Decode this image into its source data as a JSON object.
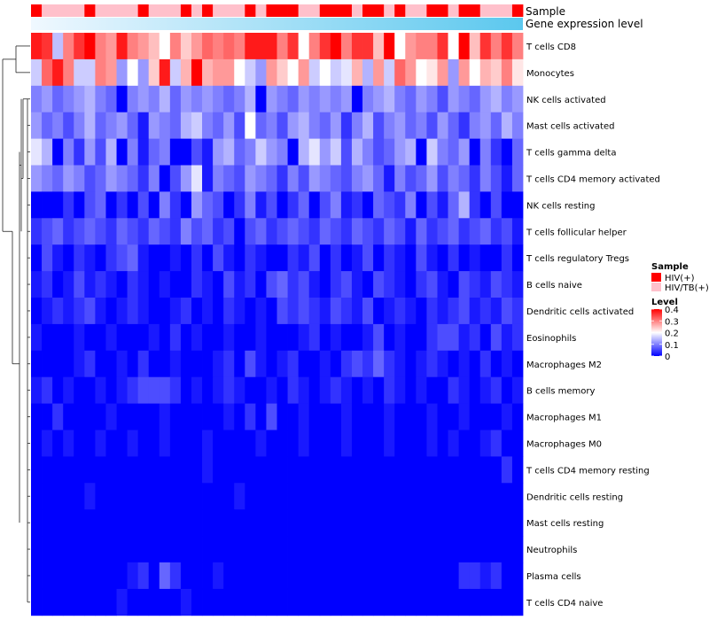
{
  "chart_data": {
    "type": "heatmap",
    "title": "",
    "n_samples": 46,
    "annotations": {
      "sample_label": "Sample",
      "gene_expression_label": "Gene expression level",
      "sample_groups": [
        "H",
        "T",
        "T",
        "T",
        "T",
        "H",
        "T",
        "T",
        "T",
        "T",
        "H",
        "T",
        "T",
        "T",
        "H",
        "T",
        "H",
        "T",
        "T",
        "T",
        "H",
        "T",
        "H",
        "H",
        "H",
        "T",
        "T",
        "H",
        "H",
        "H",
        "T",
        "H",
        "H",
        "T",
        "H",
        "T",
        "T",
        "H",
        "H",
        "T",
        "H",
        "H",
        "T",
        "T",
        "T",
        "H"
      ],
      "gene_expression_colors": [
        "#f0f8ff",
        "#5bc8ee"
      ]
    },
    "rows": [
      {
        "name": "T cells CD8",
        "values": [
          0.38,
          0.36,
          0.15,
          0.3,
          0.36,
          0.4,
          0.3,
          0.28,
          0.38,
          0.3,
          0.28,
          0.25,
          0.2,
          0.3,
          0.24,
          0.28,
          0.32,
          0.3,
          0.32,
          0.3,
          0.38,
          0.38,
          0.38,
          0.3,
          0.36,
          0.2,
          0.3,
          0.36,
          0.4,
          0.3,
          0.36,
          0.36,
          0.25,
          0.4,
          0.2,
          0.28,
          0.3,
          0.3,
          0.36,
          0.2,
          0.4,
          0.25,
          0.36,
          0.3,
          0.36,
          0.3
        ]
      },
      {
        "name": "Monocytes",
        "values": [
          0.16,
          0.32,
          0.38,
          0.3,
          0.16,
          0.16,
          0.3,
          0.28,
          0.12,
          0.2,
          0.12,
          0.24,
          0.38,
          0.16,
          0.26,
          0.4,
          0.26,
          0.28,
          0.28,
          0.2,
          0.16,
          0.12,
          0.28,
          0.24,
          0.2,
          0.28,
          0.16,
          0.2,
          0.16,
          0.18,
          0.26,
          0.14,
          0.28,
          0.16,
          0.32,
          0.28,
          0.2,
          0.22,
          0.28,
          0.12,
          0.28,
          0.2,
          0.26,
          0.24,
          0.3,
          0.22
        ]
      },
      {
        "name": "NK cells activated",
        "values": [
          0.1,
          0.12,
          0.08,
          0.1,
          0.12,
          0.14,
          0.1,
          0.08,
          0.0,
          0.1,
          0.12,
          0.1,
          0.14,
          0.08,
          0.12,
          0.1,
          0.12,
          0.1,
          0.08,
          0.1,
          0.14,
          0.0,
          0.12,
          0.1,
          0.08,
          0.12,
          0.1,
          0.12,
          0.1,
          0.12,
          0.0,
          0.1,
          0.12,
          0.14,
          0.1,
          0.08,
          0.12,
          0.1,
          0.06,
          0.12,
          0.1,
          0.08,
          0.12,
          0.14,
          0.1,
          0.12
        ]
      },
      {
        "name": "Mast cells activated",
        "values": [
          0.12,
          0.08,
          0.1,
          0.06,
          0.1,
          0.14,
          0.08,
          0.1,
          0.12,
          0.08,
          0.02,
          0.12,
          0.1,
          0.08,
          0.14,
          0.16,
          0.1,
          0.08,
          0.12,
          0.06,
          0.2,
          0.08,
          0.1,
          0.06,
          0.12,
          0.14,
          0.1,
          0.08,
          0.12,
          0.04,
          0.1,
          0.14,
          0.06,
          0.1,
          0.12,
          0.08,
          0.1,
          0.06,
          0.12,
          0.08,
          0.04,
          0.1,
          0.12,
          0.08,
          0.14,
          0.1
        ]
      },
      {
        "name": "T cells gamma delta",
        "values": [
          0.18,
          0.14,
          0.0,
          0.1,
          0.04,
          0.12,
          0.06,
          0.14,
          0.0,
          0.1,
          0.02,
          0.08,
          0.1,
          0.0,
          0.0,
          0.06,
          0.02,
          0.12,
          0.14,
          0.08,
          0.1,
          0.16,
          0.12,
          0.1,
          0.0,
          0.14,
          0.18,
          0.12,
          0.16,
          0.06,
          0.14,
          0.1,
          0.06,
          0.08,
          0.12,
          0.14,
          0.0,
          0.16,
          0.1,
          0.08,
          0.12,
          0.0,
          0.1,
          0.04,
          0.0,
          0.08
        ]
      },
      {
        "name": "T cells CD4 memory activated",
        "values": [
          0.12,
          0.1,
          0.08,
          0.12,
          0.1,
          0.06,
          0.08,
          0.12,
          0.1,
          0.08,
          0.04,
          0.1,
          0.0,
          0.06,
          0.12,
          0.18,
          0.02,
          0.1,
          0.08,
          0.06,
          0.12,
          0.1,
          0.08,
          0.04,
          0.1,
          0.06,
          0.12,
          0.1,
          0.08,
          0.06,
          0.1,
          0.12,
          0.08,
          0.02,
          0.1,
          0.06,
          0.08,
          0.12,
          0.06,
          0.1,
          0.08,
          0.04,
          0.1,
          0.06,
          0.02,
          0.08
        ]
      },
      {
        "name": "NK cells resting",
        "values": [
          0.0,
          0.0,
          0.0,
          0.04,
          0.0,
          0.06,
          0.08,
          0.0,
          0.04,
          0.0,
          0.06,
          0.0,
          0.1,
          0.04,
          0.0,
          0.12,
          0.08,
          0.06,
          0.0,
          0.04,
          0.1,
          0.02,
          0.06,
          0.0,
          0.04,
          0.08,
          0.0,
          0.06,
          0.1,
          0.02,
          0.04,
          0.0,
          0.08,
          0.06,
          0.04,
          0.1,
          0.0,
          0.06,
          0.02,
          0.08,
          0.14,
          0.04,
          0.0,
          0.06,
          0.0,
          0.0
        ]
      },
      {
        "name": "T cells follicular helper",
        "values": [
          0.04,
          0.06,
          0.08,
          0.04,
          0.06,
          0.08,
          0.06,
          0.04,
          0.08,
          0.06,
          0.04,
          0.08,
          0.06,
          0.04,
          0.1,
          0.06,
          0.08,
          0.04,
          0.06,
          0.0,
          0.06,
          0.08,
          0.04,
          0.06,
          0.08,
          0.06,
          0.04,
          0.08,
          0.06,
          0.04,
          0.08,
          0.06,
          0.04,
          0.08,
          0.06,
          0.02,
          0.08,
          0.04,
          0.06,
          0.08,
          0.04,
          0.06,
          0.08,
          0.04,
          0.06,
          0.02
        ]
      },
      {
        "name": "T cells regulatory  Tregs",
        "values": [
          0.0,
          0.06,
          0.02,
          0.0,
          0.04,
          0.02,
          0.0,
          0.04,
          0.06,
          0.08,
          0.02,
          0.0,
          0.0,
          0.02,
          0.0,
          0.04,
          0.0,
          0.06,
          0.02,
          0.0,
          0.04,
          0.02,
          0.0,
          0.0,
          0.04,
          0.02,
          0.06,
          0.0,
          0.04,
          0.0,
          0.02,
          0.06,
          0.0,
          0.04,
          0.02,
          0.0,
          0.06,
          0.02,
          0.0,
          0.04,
          0.0,
          0.02,
          0.0,
          0.0,
          0.04,
          0.0
        ]
      },
      {
        "name": "B cells naive",
        "values": [
          0.02,
          0.04,
          0.0,
          0.02,
          0.06,
          0.02,
          0.04,
          0.02,
          0.0,
          0.04,
          0.02,
          0.0,
          0.02,
          0.0,
          0.0,
          0.04,
          0.02,
          0.0,
          0.06,
          0.02,
          0.04,
          0.0,
          0.06,
          0.08,
          0.04,
          0.06,
          0.02,
          0.0,
          0.04,
          0.06,
          0.02,
          0.0,
          0.06,
          0.04,
          0.02,
          0.0,
          0.04,
          0.06,
          0.02,
          0.0,
          0.06,
          0.04,
          0.02,
          0.06,
          0.04,
          0.02
        ]
      },
      {
        "name": "Dendritic cells activated",
        "values": [
          0.0,
          0.02,
          0.04,
          0.02,
          0.04,
          0.06,
          0.02,
          0.0,
          0.02,
          0.04,
          0.02,
          0.0,
          0.0,
          0.02,
          0.04,
          0.0,
          0.02,
          0.0,
          0.04,
          0.02,
          0.0,
          0.02,
          0.0,
          0.06,
          0.04,
          0.06,
          0.04,
          0.02,
          0.06,
          0.04,
          0.02,
          0.06,
          0.0,
          0.02,
          0.04,
          0.02,
          0.0,
          0.04,
          0.02,
          0.04,
          0.06,
          0.02,
          0.04,
          0.02,
          0.06,
          0.04
        ]
      },
      {
        "name": "Eosinophils",
        "values": [
          0.02,
          0.0,
          0.0,
          0.0,
          0.02,
          0.0,
          0.0,
          0.02,
          0.0,
          0.0,
          0.0,
          0.02,
          0.0,
          0.04,
          0.0,
          0.02,
          0.0,
          0.0,
          0.02,
          0.0,
          0.0,
          0.02,
          0.0,
          0.0,
          0.0,
          0.02,
          0.04,
          0.0,
          0.02,
          0.0,
          0.0,
          0.02,
          0.06,
          0.0,
          0.02,
          0.0,
          0.0,
          0.04,
          0.06,
          0.06,
          0.02,
          0.04,
          0.0,
          0.06,
          0.02,
          0.04
        ]
      },
      {
        "name": "Macrophages M2",
        "values": [
          0.0,
          0.0,
          0.0,
          0.0,
          0.02,
          0.04,
          0.0,
          0.0,
          0.02,
          0.0,
          0.04,
          0.0,
          0.0,
          0.02,
          0.0,
          0.0,
          0.0,
          0.02,
          0.04,
          0.0,
          0.06,
          0.02,
          0.0,
          0.02,
          0.04,
          0.0,
          0.0,
          0.02,
          0.0,
          0.04,
          0.06,
          0.04,
          0.08,
          0.04,
          0.02,
          0.0,
          0.02,
          0.04,
          0.02,
          0.0,
          0.02,
          0.0,
          0.04,
          0.0,
          0.02,
          0.0
        ]
      },
      {
        "name": "B cells memory",
        "values": [
          0.02,
          0.04,
          0.0,
          0.02,
          0.0,
          0.0,
          0.02,
          0.0,
          0.02,
          0.04,
          0.06,
          0.06,
          0.06,
          0.04,
          0.0,
          0.02,
          0.0,
          0.02,
          0.04,
          0.02,
          0.0,
          0.0,
          0.02,
          0.0,
          0.04,
          0.02,
          0.0,
          0.02,
          0.04,
          0.02,
          0.0,
          0.02,
          0.0,
          0.04,
          0.02,
          0.0,
          0.02,
          0.0,
          0.0,
          0.04,
          0.02,
          0.0,
          0.02,
          0.04,
          0.0,
          0.02
        ]
      },
      {
        "name": "Macrophages M1",
        "values": [
          0.0,
          0.0,
          0.04,
          0.0,
          0.0,
          0.0,
          0.0,
          0.02,
          0.0,
          0.0,
          0.0,
          0.0,
          0.02,
          0.0,
          0.0,
          0.0,
          0.0,
          0.0,
          0.02,
          0.0,
          0.04,
          0.0,
          0.06,
          0.0,
          0.0,
          0.02,
          0.0,
          0.0,
          0.0,
          0.02,
          0.0,
          0.0,
          0.0,
          0.02,
          0.0,
          0.0,
          0.0,
          0.02,
          0.0,
          0.0,
          0.02,
          0.0,
          0.0,
          0.0,
          0.02,
          0.0
        ]
      },
      {
        "name": "Macrophages M0",
        "values": [
          0.0,
          0.02,
          0.0,
          0.02,
          0.0,
          0.0,
          0.02,
          0.0,
          0.0,
          0.02,
          0.0,
          0.0,
          0.02,
          0.0,
          0.0,
          0.0,
          0.02,
          0.0,
          0.0,
          0.0,
          0.0,
          0.02,
          0.0,
          0.0,
          0.0,
          0.02,
          0.0,
          0.0,
          0.0,
          0.02,
          0.0,
          0.0,
          0.0,
          0.02,
          0.0,
          0.0,
          0.0,
          0.02,
          0.0,
          0.02,
          0.0,
          0.0,
          0.02,
          0.04,
          0.0,
          0.0
        ]
      },
      {
        "name": "T cells CD4 memory resting",
        "values": [
          0.0,
          0.0,
          0.0,
          0.0,
          0.0,
          0.0,
          0.0,
          0.0,
          0.0,
          0.0,
          0.0,
          0.0,
          0.0,
          0.0,
          0.0,
          0.0,
          0.02,
          0.0,
          0.0,
          0.0,
          0.0,
          0.0,
          0.0,
          0.0,
          0.0,
          0.0,
          0.0,
          0.0,
          0.0,
          0.0,
          0.0,
          0.0,
          0.0,
          0.0,
          0.0,
          0.0,
          0.0,
          0.0,
          0.0,
          0.0,
          0.0,
          0.0,
          0.0,
          0.0,
          0.04,
          0.0
        ]
      },
      {
        "name": "Dendritic cells resting",
        "values": [
          0.0,
          0.0,
          0.0,
          0.0,
          0.0,
          0.02,
          0.0,
          0.0,
          0.0,
          0.0,
          0.0,
          0.0,
          0.0,
          0.0,
          0.0,
          0.0,
          0.0,
          0.0,
          0.0,
          0.02,
          0.0,
          0.0,
          0.0,
          0.0,
          0.0,
          0.0,
          0.0,
          0.0,
          0.0,
          0.0,
          0.0,
          0.0,
          0.0,
          0.0,
          0.0,
          0.0,
          0.0,
          0.0,
          0.0,
          0.0,
          0.0,
          0.0,
          0.0,
          0.0,
          0.0,
          0.0
        ]
      },
      {
        "name": "Mast cells resting",
        "values": [
          0.0,
          0.0,
          0.0,
          0.0,
          0.0,
          0.0,
          0.0,
          0.0,
          0.0,
          0.0,
          0.0,
          0.0,
          0.0,
          0.0,
          0.0,
          0.0,
          0.0,
          0.0,
          0.0,
          0.0,
          0.0,
          0.0,
          0.0,
          0.0,
          0.0,
          0.0,
          0.0,
          0.0,
          0.0,
          0.0,
          0.0,
          0.0,
          0.0,
          0.0,
          0.0,
          0.0,
          0.0,
          0.0,
          0.0,
          0.0,
          0.0,
          0.0,
          0.0,
          0.0,
          0.0,
          0.0
        ]
      },
      {
        "name": "Neutrophils",
        "values": [
          0.0,
          0.0,
          0.0,
          0.0,
          0.0,
          0.0,
          0.0,
          0.0,
          0.0,
          0.0,
          0.0,
          0.0,
          0.0,
          0.0,
          0.0,
          0.0,
          0.0,
          0.0,
          0.0,
          0.0,
          0.0,
          0.0,
          0.0,
          0.0,
          0.0,
          0.0,
          0.0,
          0.0,
          0.0,
          0.0,
          0.0,
          0.0,
          0.0,
          0.0,
          0.0,
          0.0,
          0.0,
          0.0,
          0.0,
          0.0,
          0.0,
          0.0,
          0.0,
          0.0,
          0.0,
          0.0
        ]
      },
      {
        "name": "Plasma cells",
        "values": [
          0.0,
          0.0,
          0.0,
          0.0,
          0.0,
          0.0,
          0.0,
          0.0,
          0.0,
          0.02,
          0.04,
          0.0,
          0.08,
          0.04,
          0.0,
          0.0,
          0.0,
          0.02,
          0.0,
          0.0,
          0.0,
          0.0,
          0.0,
          0.0,
          0.0,
          0.0,
          0.0,
          0.0,
          0.0,
          0.0,
          0.0,
          0.0,
          0.0,
          0.0,
          0.0,
          0.0,
          0.0,
          0.0,
          0.0,
          0.0,
          0.04,
          0.04,
          0.02,
          0.04,
          0.0,
          0.0
        ]
      },
      {
        "name": "T cells CD4 naive",
        "values": [
          0.0,
          0.0,
          0.0,
          0.0,
          0.0,
          0.0,
          0.0,
          0.0,
          0.02,
          0.0,
          0.0,
          0.0,
          0.0,
          0.0,
          0.02,
          0.0,
          0.0,
          0.0,
          0.0,
          0.0,
          0.0,
          0.0,
          0.0,
          0.0,
          0.0,
          0.0,
          0.0,
          0.0,
          0.0,
          0.0,
          0.0,
          0.0,
          0.0,
          0.0,
          0.0,
          0.0,
          0.0,
          0.0,
          0.0,
          0.0,
          0.0,
          0.0,
          0.0,
          0.0,
          0.0,
          0.0
        ]
      }
    ],
    "legend": {
      "sample": {
        "title": "Sample",
        "entries": [
          {
            "code": "H",
            "label": "HIV(+)",
            "color": "#ff0000"
          },
          {
            "code": "T",
            "label": "HIV/TB(+)",
            "color": "#ffc0cb"
          }
        ]
      },
      "level": {
        "title": "Level",
        "ticks": [
          0,
          0.1,
          0.2,
          0.3,
          0.4
        ],
        "tick_labels": [
          "0",
          "0.1",
          "0.2",
          "0.3",
          "0.4"
        ],
        "min": 0,
        "max": 0.4,
        "color_low": "#0000ff",
        "color_mid": "#ffffff",
        "color_high": "#ff0000",
        "midpoint": 0.2
      }
    }
  }
}
